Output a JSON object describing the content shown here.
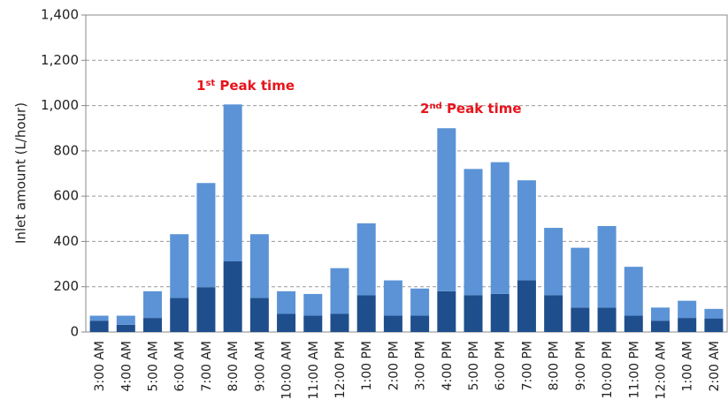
{
  "chart_data": {
    "type": "stacked_bar",
    "ylabel": "Inlet amount (L/hour)",
    "categories": [
      "3:00 AM",
      "4:00 AM",
      "5:00 AM",
      "6:00 AM",
      "7:00 AM",
      "8:00 AM",
      "9:00 AM",
      "10:00 AM",
      "11:00 AM",
      "12:00 PM",
      "1:00 PM",
      "2:00 PM",
      "3:00 PM",
      "4:00 PM",
      "5:00 PM",
      "6:00 PM",
      "7:00 PM",
      "8:00 PM",
      "9:00 PM",
      "10:00 PM",
      "11:00 PM",
      "12:00 AM",
      "1:00 AM",
      "2:00 AM"
    ],
    "series": [
      {
        "color": "#1f4e8c",
        "values": [
          50,
          32,
          62,
          150,
          198,
          312,
          150,
          80,
          72,
          80,
          162,
          72,
          72,
          180,
          162,
          168,
          228,
          162,
          108,
          108,
          72,
          50,
          62,
          60
        ]
      },
      {
        "color": "#5b93d6",
        "values": [
          22,
          40,
          118,
          282,
          460,
          693,
          282,
          100,
          96,
          202,
          318,
          156,
          120,
          720,
          558,
          582,
          442,
          298,
          264,
          360,
          216,
          58,
          76,
          42
        ]
      }
    ],
    "ylim": [
      0,
      1400
    ],
    "yticks": [
      0,
      200,
      400,
      600,
      800,
      {
        "value": 1000,
        "label": "1,000"
      },
      {
        "value": 1200,
        "label": "1,200"
      },
      {
        "value": 1400,
        "label": "1,400"
      }
    ],
    "grid": true,
    "annotations": [
      {
        "number": "1",
        "suffix": "st",
        "text": " Peak time",
        "color": "#e8141c"
      },
      {
        "number": "2",
        "suffix": "nd",
        "text": " Peak time",
        "color": "#e8141c"
      }
    ]
  }
}
